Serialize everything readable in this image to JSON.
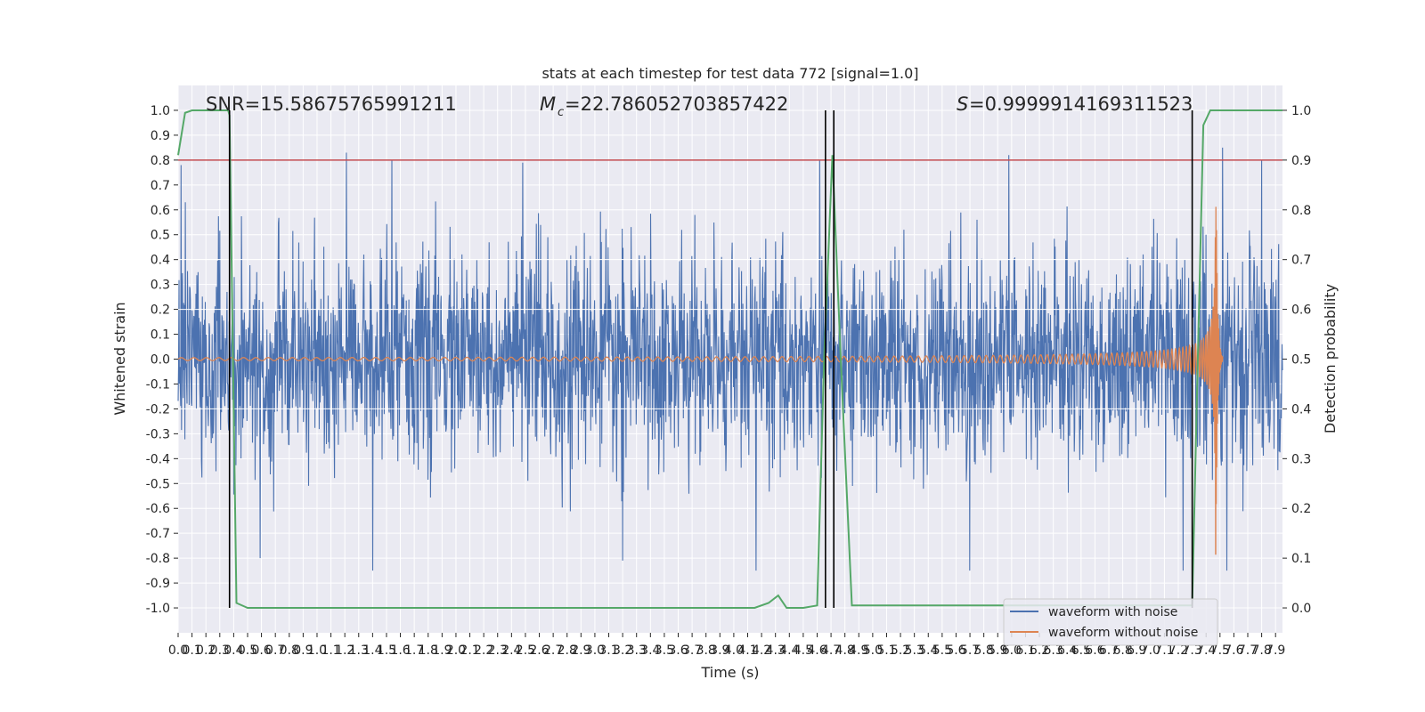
{
  "chart_data": {
    "type": "line",
    "title": "stats at each timestep for test data 772 [signal=1.0]",
    "xlabel": "Time (s)",
    "ylabel": "Whitened strain",
    "y2label": "Detection probability",
    "xlim": [
      0.0,
      7.95
    ],
    "ylim": [
      -1.1,
      1.1
    ],
    "y2lim": [
      -0.05,
      1.05
    ],
    "x_ticks": [
      0.0,
      0.1,
      0.2,
      0.3,
      0.4,
      0.5,
      0.6,
      0.7,
      0.8,
      0.9,
      1.0,
      1.1,
      1.2,
      1.3,
      1.4,
      1.5,
      1.6,
      1.7,
      1.8,
      1.9,
      2.0,
      2.1,
      2.2,
      2.3,
      2.4,
      2.5,
      2.6,
      2.7,
      2.8,
      2.9,
      3.0,
      3.1,
      3.2,
      3.3,
      3.4,
      3.5,
      3.6,
      3.7,
      3.8,
      3.9,
      4.0,
      4.1,
      4.2,
      4.3,
      4.4,
      4.5,
      4.6,
      4.7,
      4.8,
      4.9,
      5.0,
      5.1,
      5.2,
      5.3,
      5.4,
      5.5,
      5.6,
      5.7,
      5.8,
      5.9,
      6.0,
      6.1,
      6.2,
      6.3,
      6.4,
      6.5,
      6.6,
      6.7,
      6.8,
      6.9,
      7.0,
      7.1,
      7.2,
      7.3,
      7.4,
      7.5,
      7.6,
      7.7,
      7.8,
      7.9
    ],
    "y_ticks": [
      -1.0,
      -0.9,
      -0.8,
      -0.7,
      -0.6,
      -0.5,
      -0.4,
      -0.3,
      -0.2,
      -0.1,
      0.0,
      0.1,
      0.2,
      0.3,
      0.4,
      0.5,
      0.6,
      0.7,
      0.8,
      0.9,
      1.0
    ],
    "y2_ticks": [
      0.0,
      0.1,
      0.2,
      0.3,
      0.4,
      0.5,
      0.6,
      0.7,
      0.8,
      0.9,
      1.0
    ],
    "grid": true,
    "legend_position": "lower-right",
    "annotations": {
      "snr": "SNR=15.58675765991211",
      "mc_value": "=22.786052703857422",
      "s_value": "=0.9999914169311523"
    },
    "threshold": {
      "value": 0.9,
      "axis": "right",
      "color": "#c44e52"
    },
    "vertical_lines": [
      0.37,
      4.66,
      4.72,
      7.3
    ],
    "series": [
      {
        "name": "waveform with noise",
        "color": "#4c72b0",
        "axis": "left",
        "envelope": {
          "typical_abs": 0.5,
          "peak_abs": 0.85
        },
        "notable_peaks": [
          {
            "x": 0.02,
            "y": 0.78
          },
          {
            "x": 1.21,
            "y": 0.83
          },
          {
            "x": 1.54,
            "y": 0.8
          },
          {
            "x": 2.48,
            "y": 0.79
          },
          {
            "x": 4.62,
            "y": 0.8
          },
          {
            "x": 5.98,
            "y": 0.82
          },
          {
            "x": 7.52,
            "y": 0.86
          },
          {
            "x": 7.8,
            "y": 0.8
          },
          {
            "x": 0.59,
            "y": -0.8
          },
          {
            "x": 1.4,
            "y": -0.93
          },
          {
            "x": 3.2,
            "y": -0.81
          },
          {
            "x": 4.16,
            "y": -0.85
          },
          {
            "x": 5.7,
            "y": -0.85
          },
          {
            "x": 7.55,
            "y": -0.9
          }
        ]
      },
      {
        "name": "waveform without noise",
        "color": "#dd8452",
        "axis": "left",
        "chirp": {
          "merger_time": 7.47,
          "final_amplitude": 0.82,
          "start_amplitude": 0.006,
          "start_freq_hz": 11
        }
      },
      {
        "name": "detection probability",
        "color": "#55a868",
        "axis": "right",
        "x": [
          0.0,
          0.05,
          0.1,
          0.36,
          0.37,
          0.42,
          0.5,
          4.15,
          4.25,
          4.32,
          4.38,
          4.5,
          4.6,
          4.65,
          4.71,
          4.77,
          4.85,
          7.3,
          7.34,
          7.38,
          7.43,
          7.5,
          7.95
        ],
        "y": [
          0.91,
          0.995,
          1.0,
          1.0,
          0.99,
          0.01,
          0.0,
          0.0,
          0.01,
          0.025,
          0.0,
          0.0,
          0.005,
          0.5,
          0.91,
          0.5,
          0.005,
          0.005,
          0.5,
          0.97,
          1.0,
          1.0,
          1.0
        ]
      }
    ]
  }
}
